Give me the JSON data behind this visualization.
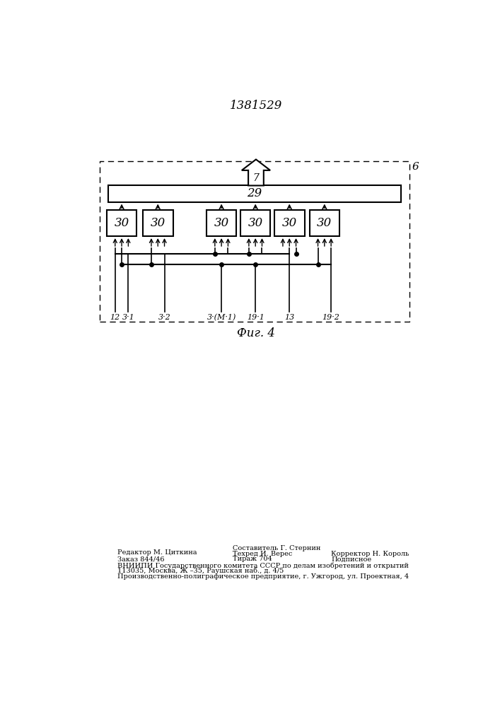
{
  "title": "1381529",
  "fig_label": "Фиг. 4",
  "outer_box_label": "6",
  "bus_label": "29",
  "arrow_label": "7",
  "block_label": "30",
  "num_blocks": 6,
  "bottom_labels": [
    "12",
    "3·1",
    "3·2",
    "3·(М·1)",
    "19·1",
    "13",
    "19·2"
  ],
  "footer_line1_left": "Редактор М. Циткина",
  "footer_line2_left": "Заказ 844/46",
  "footer_line1_mid": "Составитель Г. Стернин",
  "footer_line2_mid": "Техред И. Верес",
  "footer_line3_mid": "Тираж 704",
  "footer_line1_right": "Корректор Н. Король",
  "footer_line2_right": "Подписное",
  "footer_vnipi": "ВНИИПИ Государственного комитета СССР по делам изобретений и открытий",
  "footer_address": "113035, Москва, Ж –35, Раушская наб., д. 4/5",
  "footer_prod": "Производственно-полиграфическое предприятие, г. Ужгород, ул. Проектная, 4",
  "bg_color": "#ffffff",
  "line_color": "#000000",
  "font_color": "#000000"
}
